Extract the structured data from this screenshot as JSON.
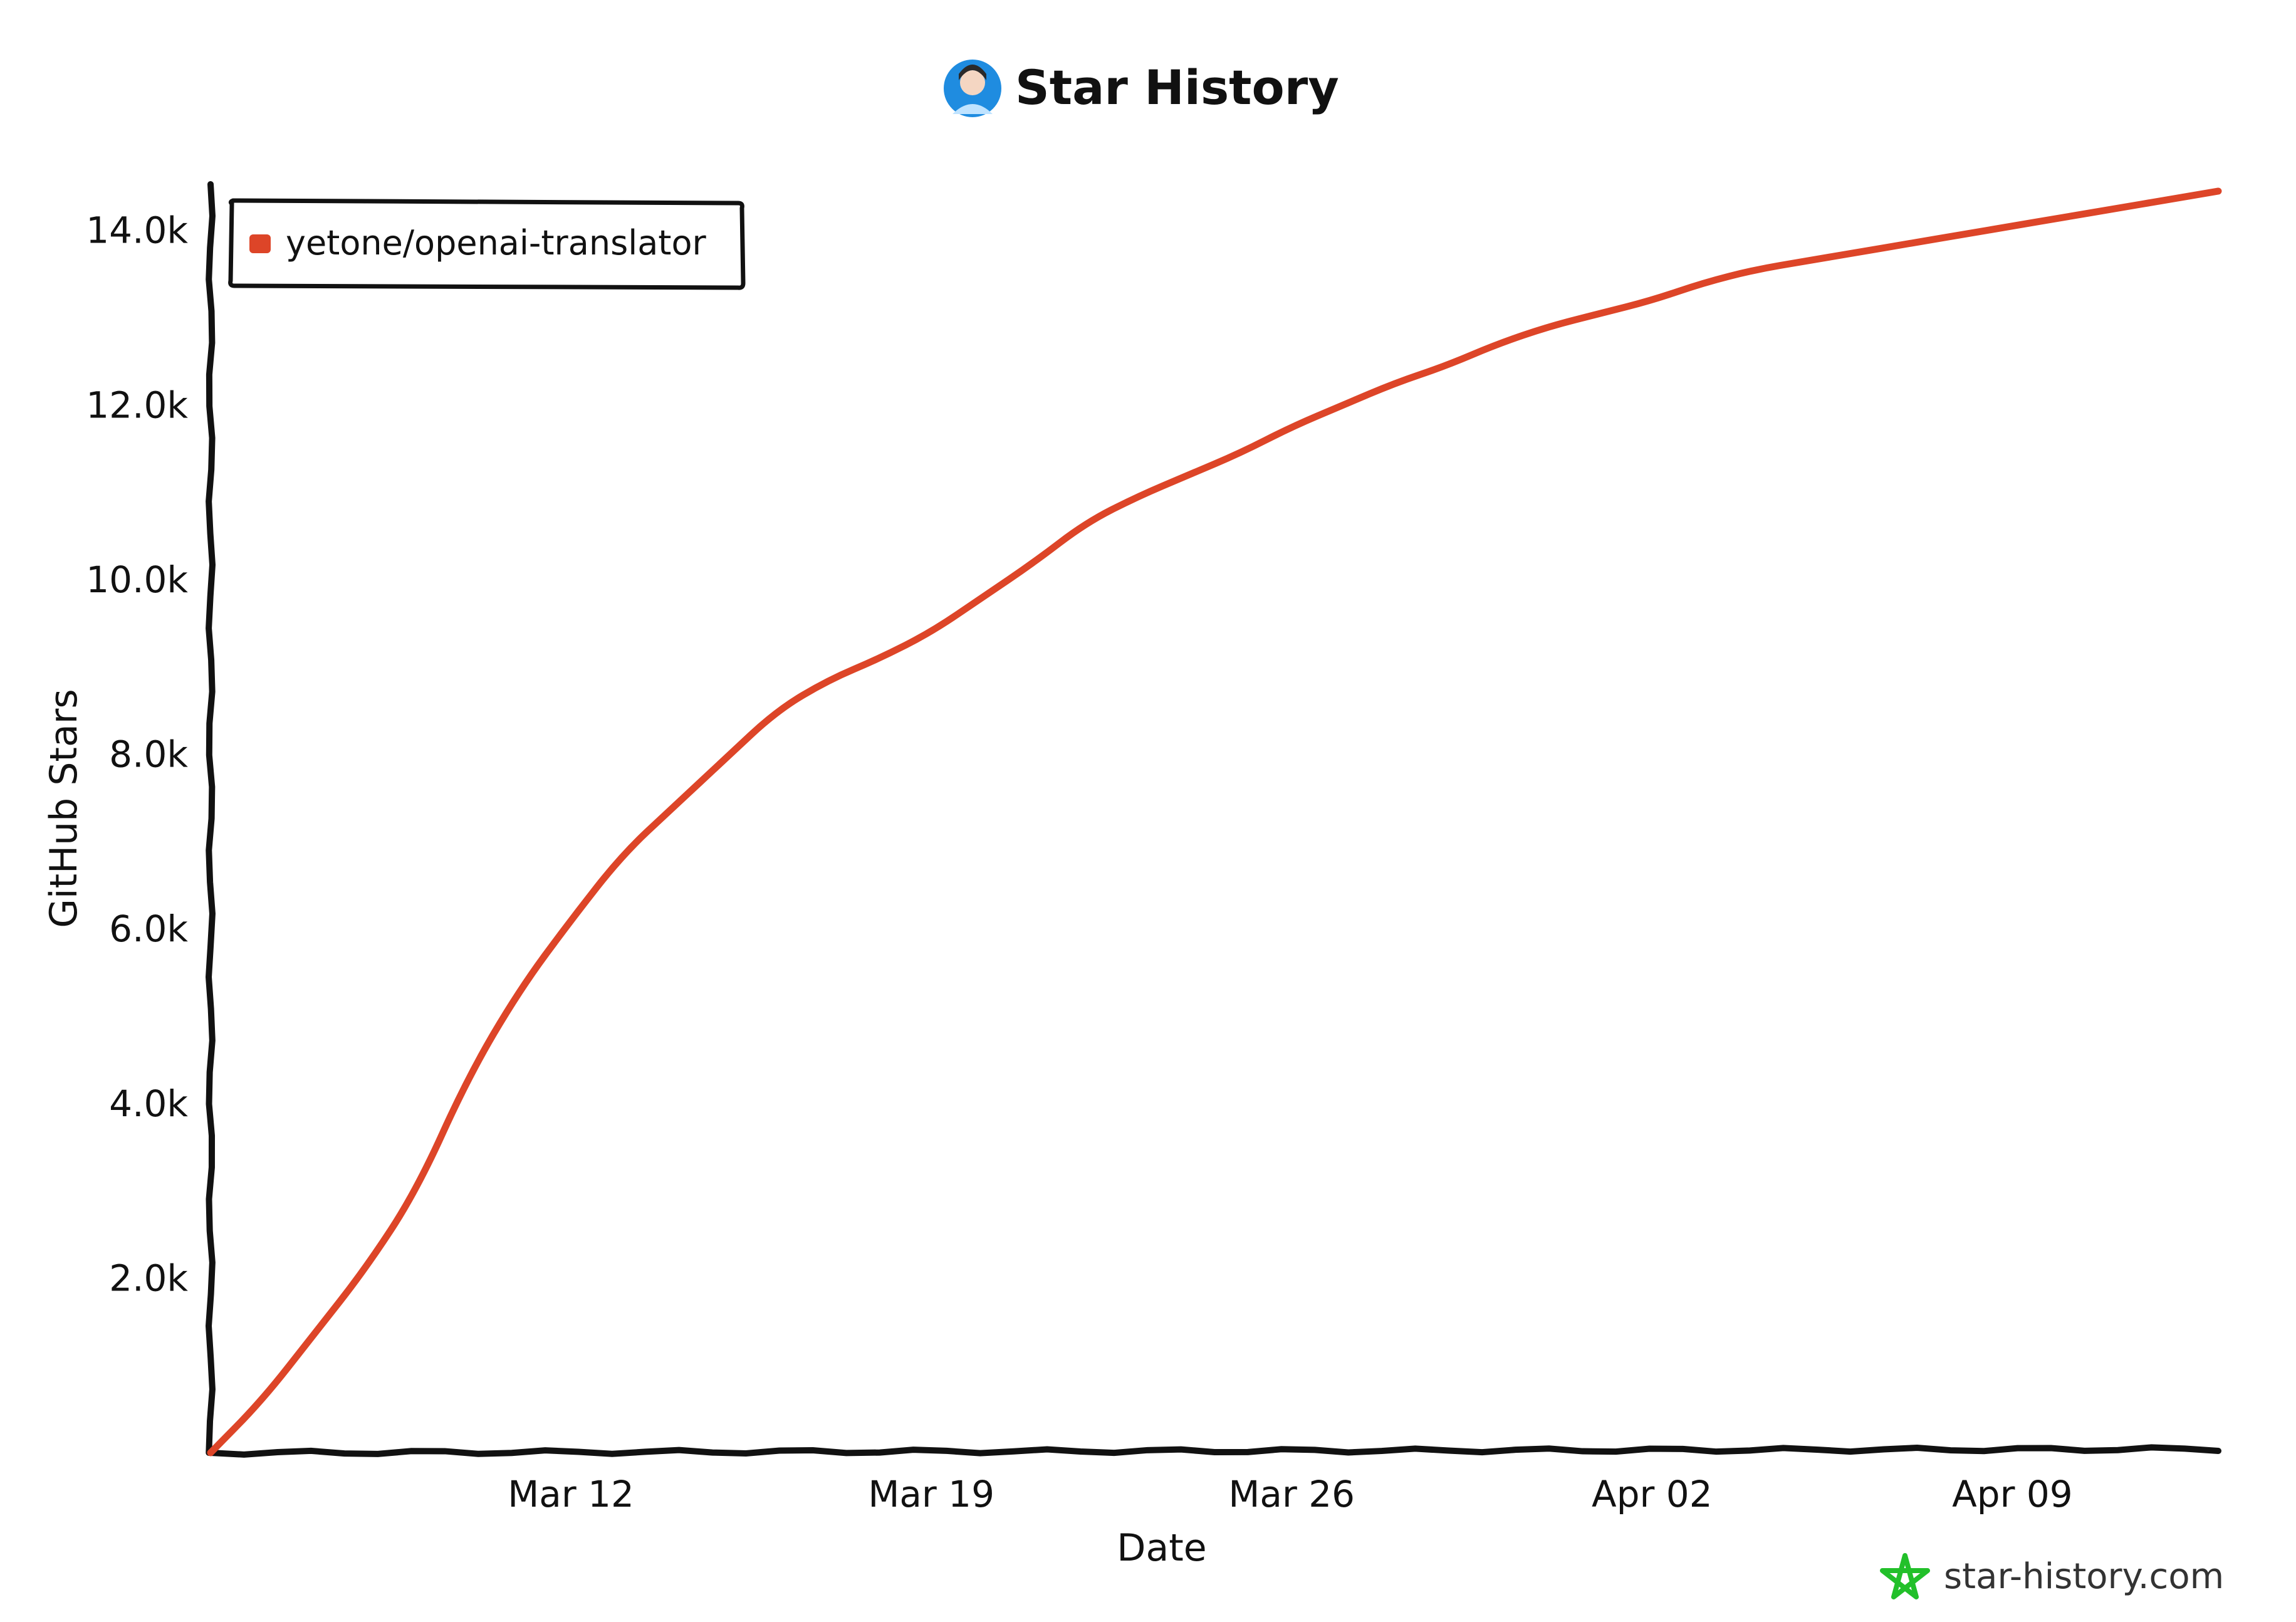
{
  "title": "Star History",
  "watermark": "star-history.com",
  "colors": {
    "series": "#dd4528",
    "axis": "#111111",
    "avatar": "#1f8ce0",
    "watermark_icon": "#22c02a"
  },
  "chart_data": {
    "type": "line",
    "title": "Star History",
    "xlabel": "Date",
    "ylabel": "GitHub Stars",
    "x_tick_labels": [
      "Mar 12",
      "Mar 19",
      "Mar 26",
      "Apr 02",
      "Apr 09"
    ],
    "x_tick_dates": [
      "2023-03-12",
      "2023-03-19",
      "2023-03-26",
      "2023-04-02",
      "2023-04-09"
    ],
    "xlim": [
      "2023-03-05",
      "2023-04-13"
    ],
    "y_ticks": [
      2000,
      4000,
      6000,
      8000,
      10000,
      12000,
      14000
    ],
    "y_tick_labels": [
      "2.0k",
      "4.0k",
      "6.0k",
      "8.0k",
      "10.0k",
      "12.0k",
      "14.0k"
    ],
    "ylim": [
      0,
      14500
    ],
    "grid": false,
    "legend": "top-left",
    "series": [
      {
        "name": "yetone/openai-translator",
        "points": [
          {
            "x": "2023-03-05",
            "y": 0
          },
          {
            "x": "2023-03-06",
            "y": 600
          },
          {
            "x": "2023-03-07",
            "y": 1350
          },
          {
            "x": "2023-03-08",
            "y": 2100
          },
          {
            "x": "2023-03-09",
            "y": 3000
          },
          {
            "x": "2023-03-10",
            "y": 4300
          },
          {
            "x": "2023-03-11",
            "y": 5300
          },
          {
            "x": "2023-03-12",
            "y": 6100
          },
          {
            "x": "2023-03-13",
            "y": 6850
          },
          {
            "x": "2023-03-14",
            "y": 7400
          },
          {
            "x": "2023-03-15",
            "y": 7950
          },
          {
            "x": "2023-03-16",
            "y": 8500
          },
          {
            "x": "2023-03-17",
            "y": 8850
          },
          {
            "x": "2023-03-18",
            "y": 9100
          },
          {
            "x": "2023-03-19",
            "y": 9400
          },
          {
            "x": "2023-03-20",
            "y": 9800
          },
          {
            "x": "2023-03-21",
            "y": 10200
          },
          {
            "x": "2023-03-22",
            "y": 10650
          },
          {
            "x": "2023-03-23",
            "y": 10950
          },
          {
            "x": "2023-03-24",
            "y": 11200
          },
          {
            "x": "2023-03-25",
            "y": 11450
          },
          {
            "x": "2023-03-26",
            "y": 11750
          },
          {
            "x": "2023-03-27",
            "y": 12000
          },
          {
            "x": "2023-03-28",
            "y": 12250
          },
          {
            "x": "2023-03-29",
            "y": 12450
          },
          {
            "x": "2023-03-30",
            "y": 12700
          },
          {
            "x": "2023-03-31",
            "y": 12900
          },
          {
            "x": "2023-04-01",
            "y": 13050
          },
          {
            "x": "2023-04-02",
            "y": 13200
          },
          {
            "x": "2023-04-03",
            "y": 13400
          },
          {
            "x": "2023-04-04",
            "y": 13550
          },
          {
            "x": "2023-04-05",
            "y": 13650
          },
          {
            "x": "2023-04-06",
            "y": 13750
          },
          {
            "x": "2023-04-07",
            "y": 13850
          },
          {
            "x": "2023-04-08",
            "y": 13950
          },
          {
            "x": "2023-04-09",
            "y": 14050
          },
          {
            "x": "2023-04-10",
            "y": 14150
          },
          {
            "x": "2023-04-11",
            "y": 14250
          },
          {
            "x": "2023-04-12",
            "y": 14350
          },
          {
            "x": "2023-04-13",
            "y": 14450
          }
        ]
      }
    ]
  }
}
